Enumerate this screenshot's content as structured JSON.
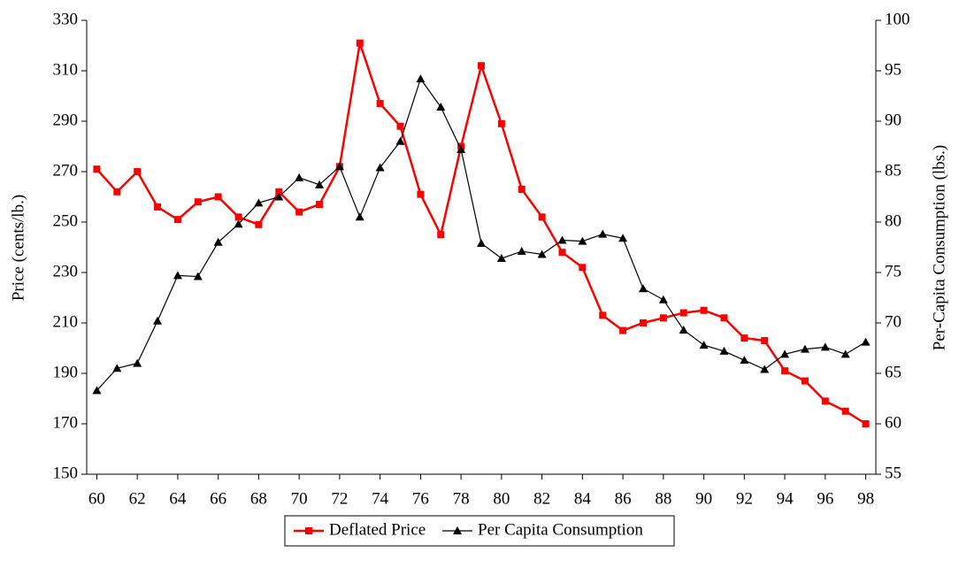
{
  "chart_data": {
    "type": "line",
    "y_label": "Price (cents/lb.)",
    "y2_label": "Per-Capita Consumption (lbs.)",
    "x": [
      60,
      61,
      62,
      63,
      64,
      65,
      66,
      67,
      68,
      69,
      70,
      71,
      72,
      73,
      74,
      75,
      76,
      77,
      78,
      79,
      80,
      81,
      82,
      83,
      84,
      85,
      86,
      87,
      88,
      89,
      90,
      91,
      92,
      93,
      94,
      95,
      96,
      97,
      98
    ],
    "xlim": [
      59.5,
      98.5
    ],
    "xticks": [
      60,
      62,
      64,
      66,
      68,
      70,
      72,
      74,
      76,
      78,
      80,
      82,
      84,
      86,
      88,
      90,
      92,
      94,
      96,
      98
    ],
    "ylim": [
      150,
      330
    ],
    "yticks": [
      150,
      170,
      190,
      210,
      230,
      250,
      270,
      290,
      310,
      330
    ],
    "y2lim": [
      55,
      100
    ],
    "y2ticks": [
      55,
      60,
      65,
      70,
      75,
      80,
      85,
      90,
      95,
      100
    ],
    "grid": false,
    "legend": "bottom",
    "series": [
      {
        "name": "Deflated Price",
        "color": "#ff0000",
        "marker": "square",
        "values": [
          271,
          262,
          270,
          256,
          251,
          258,
          260,
          252,
          249,
          262,
          254,
          257,
          272,
          321,
          297,
          288,
          261,
          245,
          280,
          312,
          289,
          263,
          252,
          238,
          232,
          213,
          207,
          210,
          212,
          214,
          215,
          212,
          204,
          203,
          191,
          187,
          179,
          175,
          170
        ]
      },
      {
        "name": "Per Capita Consumption",
        "color": "#000000",
        "marker": "triangle",
        "axis": "y2",
        "values": [
          63.3,
          65.5,
          66,
          70.2,
          74.7,
          74.6,
          78,
          79.8,
          81.9,
          82.5,
          84.4,
          83.7,
          85.5,
          80.5,
          85.4,
          88,
          94.2,
          91.4,
          87.2,
          77.9,
          76.4,
          77.1,
          76.8,
          78.2,
          78.1,
          78.8,
          78.4,
          73.4,
          72.3,
          69.3,
          67.8,
          67.2,
          66.3,
          65.4,
          66.9,
          67.4,
          67.6,
          66.9,
          68.1
        ]
      }
    ]
  }
}
